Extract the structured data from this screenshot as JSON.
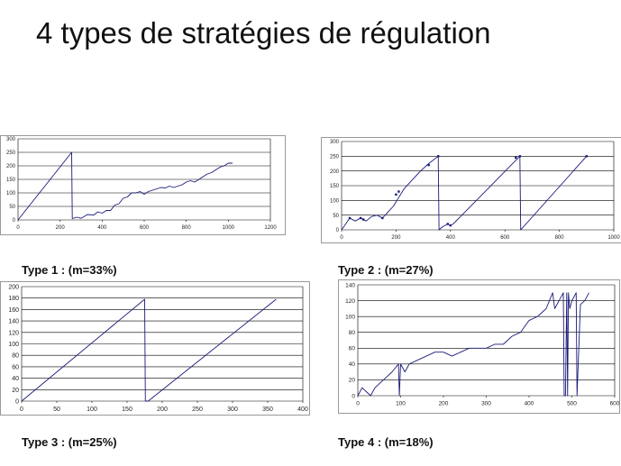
{
  "slide": {
    "title": "4 types de stratégies de régulation"
  },
  "captions": [
    "Type 1 : (m=33%)",
    "Type 2 : (m=27%)",
    "Type 3 : (m=25%)",
    "Type 4 : (m=18%)"
  ],
  "colors": {
    "series": "#1a1a7a",
    "grid": "#000000",
    "frame": "#999999",
    "background": "#ffffff"
  },
  "chart_data": [
    {
      "type": "line",
      "title": "",
      "xlabel": "",
      "ylabel": "",
      "xlim": [
        0,
        1200
      ],
      "ylim": [
        0,
        300
      ],
      "xticks": [
        0,
        200,
        400,
        600,
        800,
        1000,
        1200
      ],
      "yticks": [
        0,
        50,
        100,
        150,
        200,
        250,
        300
      ],
      "grid": "horizontal",
      "series": [
        {
          "marker": false,
          "points": [
            [
              0,
              0
            ],
            [
              255,
              250
            ],
            [
              258,
              5
            ],
            [
              280,
              10
            ],
            [
              300,
              6
            ],
            [
              330,
              20
            ],
            [
              360,
              18
            ],
            [
              380,
              30
            ],
            [
              400,
              25
            ],
            [
              420,
              35
            ],
            [
              440,
              35
            ],
            [
              460,
              55
            ],
            [
              480,
              60
            ],
            [
              500,
              80
            ],
            [
              520,
              85
            ],
            [
              540,
              100
            ],
            [
              560,
              100
            ],
            [
              580,
              105
            ],
            [
              600,
              95
            ],
            [
              620,
              105
            ],
            [
              640,
              110
            ],
            [
              660,
              115
            ],
            [
              680,
              120
            ],
            [
              700,
              118
            ],
            [
              720,
              125
            ],
            [
              740,
              120
            ],
            [
              760,
              125
            ],
            [
              780,
              130
            ],
            [
              800,
              140
            ],
            [
              820,
              145
            ],
            [
              840,
              140
            ],
            [
              860,
              150
            ],
            [
              880,
              160
            ],
            [
              900,
              170
            ],
            [
              920,
              175
            ],
            [
              940,
              185
            ],
            [
              960,
              195
            ],
            [
              980,
              200
            ],
            [
              1000,
              210
            ],
            [
              1020,
              210
            ]
          ]
        }
      ]
    },
    {
      "type": "line",
      "title": "",
      "xlabel": "",
      "ylabel": "",
      "xlim": [
        0,
        1000
      ],
      "ylim": [
        0,
        300
      ],
      "xticks": [
        0,
        200,
        400,
        600,
        800,
        1000
      ],
      "yticks": [
        0,
        50,
        100,
        150,
        200,
        250,
        300
      ],
      "grid": "horizontal",
      "series": [
        {
          "marker": false,
          "points": [
            [
              0,
              0
            ],
            [
              30,
              40
            ],
            [
              50,
              30
            ],
            [
              70,
              40
            ],
            [
              90,
              30
            ],
            [
              110,
              45
            ],
            [
              130,
              50
            ],
            [
              150,
              40
            ],
            [
              170,
              60
            ],
            [
              190,
              80
            ],
            [
              210,
              110
            ],
            [
              230,
              140
            ],
            [
              260,
              170
            ],
            [
              290,
              200
            ],
            [
              320,
              225
            ],
            [
              355,
              250
            ],
            [
              358,
              0
            ],
            [
              370,
              10
            ],
            [
              390,
              20
            ],
            [
              400,
              15
            ],
            [
              410,
              20
            ],
            [
              655,
              250
            ],
            [
              658,
              0
            ],
            [
              900,
              250
            ]
          ]
        },
        {
          "marker": true,
          "points": [
            [
              30,
              40
            ],
            [
              70,
              40
            ],
            [
              80,
              35
            ],
            [
              150,
              40
            ],
            [
              200,
              120
            ],
            [
              210,
              130
            ],
            [
              320,
              220
            ],
            [
              355,
              250
            ],
            [
              390,
              20
            ],
            [
              400,
              15
            ],
            [
              640,
              245
            ],
            [
              655,
              250
            ],
            [
              900,
              250
            ]
          ]
        }
      ]
    },
    {
      "type": "line",
      "title": "",
      "xlabel": "",
      "ylabel": "",
      "xlim": [
        0,
        400
      ],
      "ylim": [
        0,
        200
      ],
      "xticks": [
        0,
        50,
        100,
        150,
        200,
        250,
        300,
        350,
        400
      ],
      "yticks": [
        0,
        20,
        40,
        60,
        80,
        100,
        120,
        140,
        160,
        180,
        200
      ],
      "grid": "horizontal",
      "series": [
        {
          "marker": false,
          "points": [
            [
              0,
              0
            ],
            [
              175,
              178
            ],
            [
              176,
              0
            ],
            [
              178,
              0
            ],
            [
              180,
              0
            ],
            [
              362,
              178
            ]
          ]
        }
      ]
    },
    {
      "type": "line",
      "title": "",
      "xlabel": "",
      "ylabel": "",
      "xlim": [
        0,
        600
      ],
      "ylim": [
        0,
        140
      ],
      "xticks": [
        0,
        100,
        200,
        300,
        400,
        500,
        600
      ],
      "yticks": [
        0,
        20,
        40,
        60,
        80,
        100,
        120,
        140
      ],
      "grid": "horizontal",
      "series": [
        {
          "marker": false,
          "points": [
            [
              0,
              0
            ],
            [
              10,
              10
            ],
            [
              20,
              5
            ],
            [
              30,
              0
            ],
            [
              40,
              10
            ],
            [
              60,
              20
            ],
            [
              80,
              30
            ],
            [
              95,
              40
            ],
            [
              97,
              0
            ],
            [
              100,
              40
            ],
            [
              110,
              30
            ],
            [
              120,
              40
            ],
            [
              140,
              45
            ],
            [
              160,
              50
            ],
            [
              180,
              55
            ],
            [
              200,
              55
            ],
            [
              220,
              50
            ],
            [
              240,
              55
            ],
            [
              260,
              60
            ],
            [
              280,
              60
            ],
            [
              300,
              60
            ],
            [
              320,
              65
            ],
            [
              340,
              65
            ],
            [
              360,
              75
            ],
            [
              380,
              80
            ],
            [
              400,
              95
            ],
            [
              420,
              100
            ],
            [
              440,
              110
            ],
            [
              455,
              130
            ],
            [
              460,
              110
            ],
            [
              470,
              120
            ],
            [
              480,
              130
            ],
            [
              482,
              0
            ],
            [
              485,
              0
            ],
            [
              488,
              130
            ],
            [
              490,
              0
            ],
            [
              492,
              130
            ],
            [
              495,
              110
            ],
            [
              500,
              120
            ],
            [
              510,
              130
            ],
            [
              512,
              0
            ],
            [
              520,
              115
            ],
            [
              530,
              120
            ],
            [
              540,
              130
            ]
          ]
        }
      ]
    }
  ]
}
